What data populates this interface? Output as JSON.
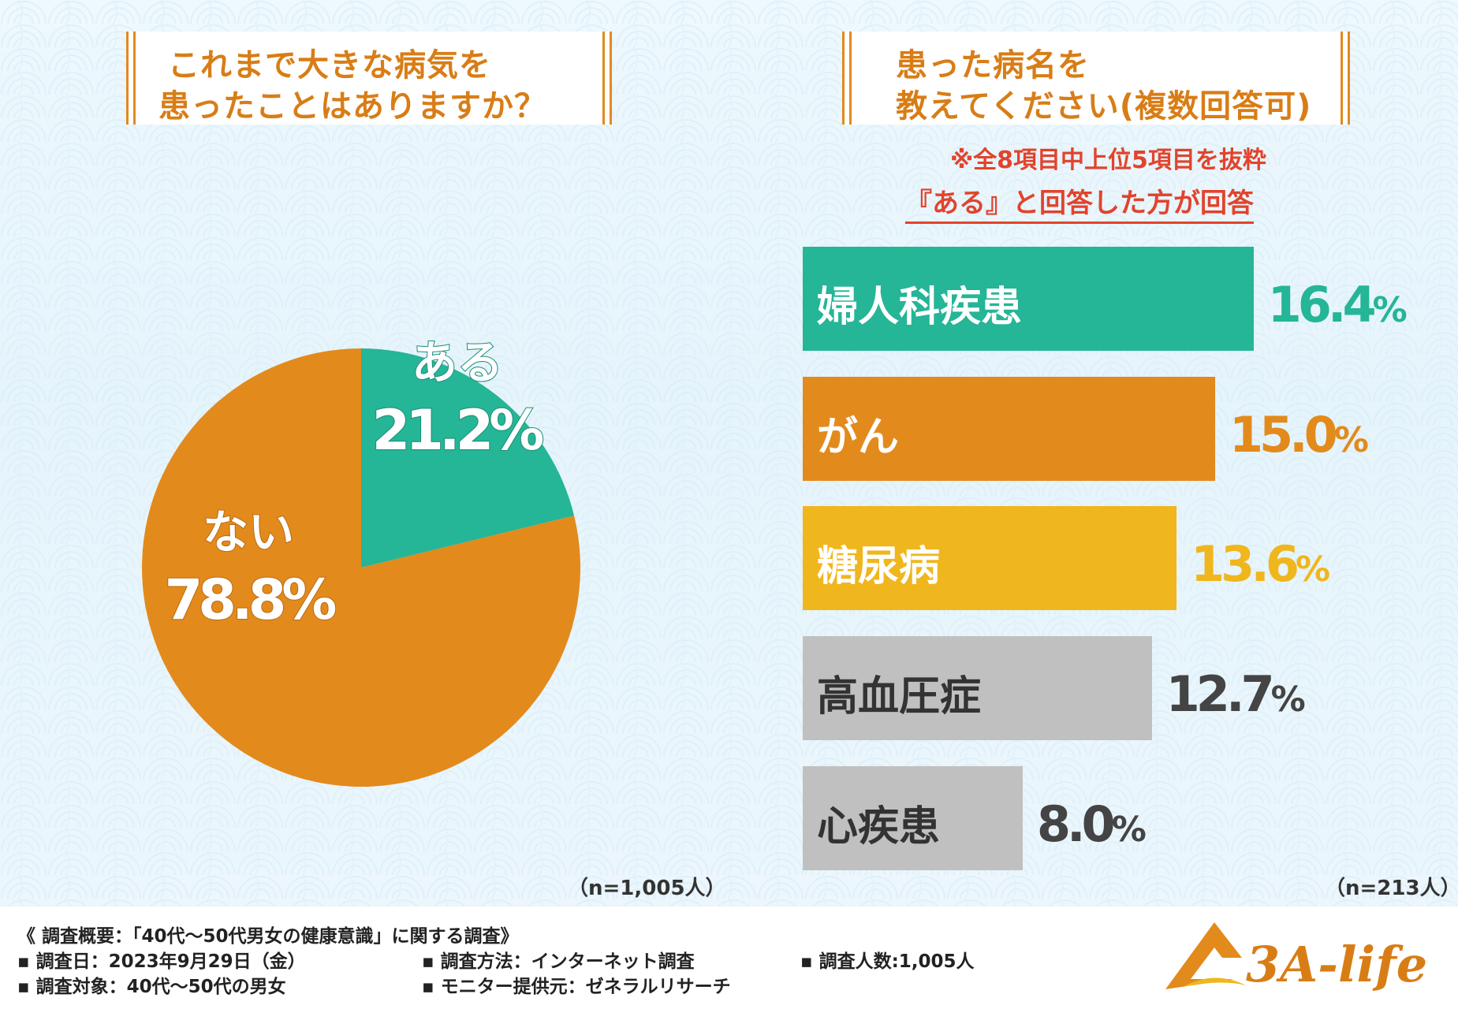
{
  "left_title": {
    "line1": "これまで大きな病気を",
    "line2": "患ったことはありますか？"
  },
  "right_title": {
    "line1": "患った病名を",
    "line2": "教えてください(複数回答可)"
  },
  "note_selection": "※全8項目中上位5項目を抜粋",
  "note_respondents": "『ある』と回答した方が回答",
  "chart_data": [
    {
      "type": "pie",
      "title": "これまで大きな病気を患ったことはありますか？",
      "slices": [
        {
          "label": "ある",
          "value": 21.2,
          "display": "21.2%",
          "color": "#25b597"
        },
        {
          "label": "ない",
          "value": 78.8,
          "display": "78.8%",
          "color": "#e38a1c"
        }
      ],
      "n_note": "（n=1,005人）"
    },
    {
      "type": "bar",
      "orientation": "horizontal",
      "title": "患った病名を教えてください(複数回答可)",
      "categories": [
        "婦人科疾患",
        "がん",
        "糖尿病",
        "高血圧症",
        "心疾患"
      ],
      "values": [
        16.4,
        15.0,
        13.6,
        12.7,
        8.0
      ],
      "value_labels": [
        {
          "num": "16.4",
          "unit": "%"
        },
        {
          "num": "15.0",
          "unit": "%"
        },
        {
          "num": "13.6",
          "unit": "%"
        },
        {
          "num": "12.7",
          "unit": "%"
        },
        {
          "num": "8.0",
          "unit": "%"
        }
      ],
      "colors": [
        "#25b597",
        "#e38a1c",
        "#f0b61d",
        "#c0c0c0",
        "#c0c0c0"
      ],
      "label_colors": [
        "#ffffff",
        "#ffffff",
        "#ffffff",
        "#333333",
        "#333333"
      ],
      "value_colors": [
        "#25b597",
        "#e38a1c",
        "#f0b61d",
        "#444444",
        "#444444"
      ],
      "xlim": [
        0,
        17.5
      ],
      "n_note": "（n=213人）"
    }
  ],
  "footer": {
    "survey_title": "《 調査概要：「40代～50代男女の健康意識」に関する調査》",
    "date": "▪ 調査日：2023年9月29日（金）",
    "method": "▪ 調査方法：インターネット調査",
    "count": "▪ 調査人数:1,005人",
    "target": "▪ 調査対象：40代～50代の男女",
    "provider": "▪ モニター提供元：ゼネラルリサーチ",
    "logo_text": "3A-life"
  }
}
